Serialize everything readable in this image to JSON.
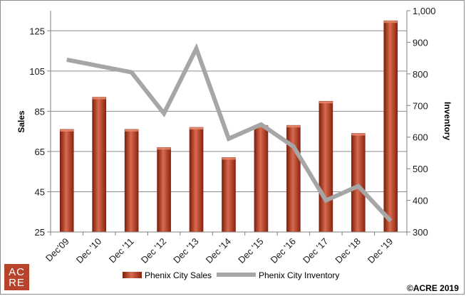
{
  "logo": {
    "line1": "AC",
    "line2": "RE"
  },
  "copyright": "©ACRE 2019",
  "colors": {
    "bar_fill": "#b5391d",
    "bar_dark": "#7d1f0c",
    "bar_light": "#d86a4e",
    "line_color": "#a6a6a6",
    "grid": "#8c8c8c",
    "logo_bg": "#b8432d"
  },
  "chart_data": {
    "type": "bar",
    "categories": [
      "Dec'09",
      "Dec '10",
      "Dec '11",
      "Dec '12",
      "Dec '13",
      "Dec '14",
      "Dec '15",
      "Dec '16",
      "Dec '17",
      "Dec '18",
      "Dec '19"
    ],
    "series": [
      {
        "name": "Phenix City Sales",
        "type": "bar",
        "axis": "left",
        "values": [
          76,
          92,
          76,
          67,
          77,
          62,
          78,
          78,
          90,
          74,
          130
        ]
      },
      {
        "name": "Phenix City Inventory",
        "type": "line",
        "axis": "right",
        "values": [
          845,
          825,
          805,
          675,
          880,
          595,
          640,
          570,
          400,
          445,
          335
        ]
      }
    ],
    "y_left": {
      "label": "Sales",
      "ticks": [
        "25",
        "45",
        "65",
        "85",
        "105",
        "125"
      ],
      "ylim": [
        25,
        135
      ]
    },
    "y_right": {
      "label": "Inventory",
      "ticks": [
        "300",
        "400",
        "500",
        "600",
        "700",
        "800",
        "900",
        "1,000"
      ],
      "ylim": [
        300,
        1000
      ]
    },
    "grid": true,
    "legend_position": "bottom"
  }
}
